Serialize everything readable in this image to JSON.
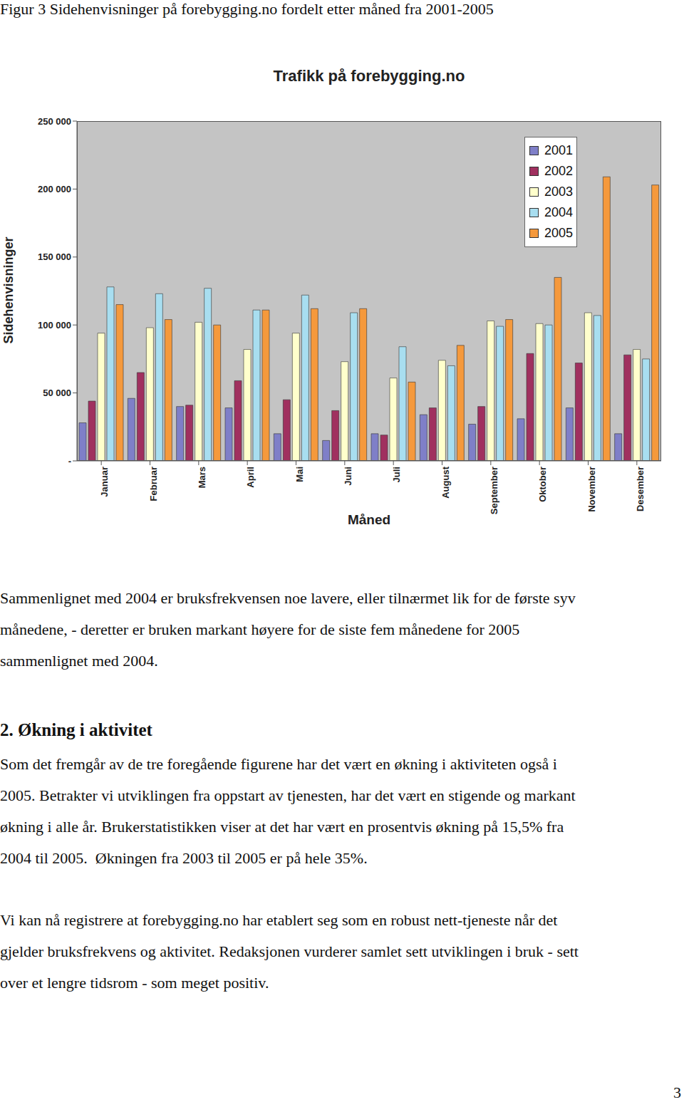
{
  "caption": "Figur 3 Sidehenvisninger på forebygging.no fordelt etter måned fra 2001-2005",
  "chart_data": {
    "type": "bar",
    "title": "Trafikk på forebygging.no",
    "y_label": "Sidehenvisninger",
    "x_label": "Måned",
    "categories": [
      "Januar",
      "Februar",
      "Mars",
      "April",
      "Mai",
      "Juni",
      "Juli",
      "August",
      "September",
      "Oktober",
      "November",
      "Desember"
    ],
    "series": [
      {
        "name": "2001",
        "color": "#7f7fc8",
        "values": [
          28000,
          46000,
          40000,
          39000,
          20000,
          15000,
          20000,
          34000,
          27000,
          31000,
          39000,
          20000
        ]
      },
      {
        "name": "2002",
        "color": "#a0305f",
        "values": [
          44000,
          65000,
          41000,
          59000,
          45000,
          37000,
          19000,
          39000,
          40000,
          79000,
          72000,
          78000
        ]
      },
      {
        "name": "2003",
        "color": "#ffffcc",
        "values": [
          94000,
          98000,
          102000,
          82000,
          94000,
          73000,
          61000,
          74000,
          103000,
          101000,
          109000,
          82000
        ]
      },
      {
        "name": "2004",
        "color": "#a8def0",
        "values": [
          128000,
          123000,
          127000,
          111000,
          122000,
          109000,
          84000,
          70000,
          99000,
          100000,
          107000,
          75000
        ]
      },
      {
        "name": "2005",
        "color": "#f5993c",
        "values": [
          115000,
          104000,
          100000,
          111000,
          112000,
          112000,
          58000,
          85000,
          104000,
          135000,
          209000,
          203000
        ]
      }
    ],
    "ylim": [
      0,
      250000
    ],
    "yticks": [
      {
        "value": 0,
        "label": "-"
      },
      {
        "value": 50000,
        "label": "50 000"
      },
      {
        "value": 100000,
        "label": "100 000"
      },
      {
        "value": 150000,
        "label": "150 000"
      },
      {
        "value": 200000,
        "label": "200 000"
      },
      {
        "value": 250000,
        "label": "250 000"
      }
    ],
    "grid": false,
    "legend": "top-right"
  },
  "paragraphs": [
    [
      "Sammenlignet med 2004 er bruksfrekvensen noe lavere, eller tilnærmet lik for de første syv",
      "månedene, - deretter er bruken markant høyere for de siste fem månedene for 2005",
      "sammenlignet med 2004."
    ]
  ],
  "heading": "2. Økning i aktivitet",
  "paragraphs_after_heading": [
    [
      "Som det fremgår av de tre foregående figurene har det vært en økning i aktiviteten også i",
      "2005. Betrakter vi utviklingen fra oppstart av tjenesten, har det vært en stigende og markant",
      "økning i alle år. Brukerstatistikken viser at det har vært en prosentvis økning på 15,5% fra",
      "2004 til 2005.  Økningen fra 2003 til 2005 er på hele 35%."
    ],
    [
      "Vi kan nå registrere at forebygging.no har etablert seg som en robust nett-tjeneste når det",
      "gjelder bruksfrekvens og aktivitet. Redaksjonen vurderer samlet sett utviklingen i bruk - sett",
      "over et lengre tidsrom - som meget positiv."
    ]
  ],
  "page_number": "3"
}
